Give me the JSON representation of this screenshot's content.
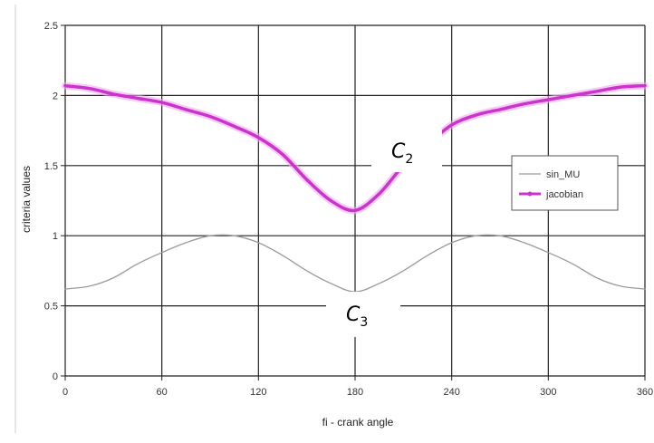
{
  "chart_data": {
    "type": "line",
    "title": "",
    "xlabel": "fi - crank angle",
    "ylabel": "criteria values",
    "xlim": [
      0,
      360
    ],
    "ylim": [
      0,
      2.5
    ],
    "x_ticks": [
      "0",
      "60",
      "120",
      "180",
      "240",
      "300",
      "360"
    ],
    "y_ticks": [
      "0",
      "0.5",
      "1",
      "1.5",
      "2",
      "2.5"
    ],
    "grid": true,
    "legend": "right",
    "x": [
      0,
      15,
      30,
      45,
      60,
      75,
      90,
      105,
      120,
      135,
      150,
      165,
      180,
      195,
      210,
      225,
      240,
      255,
      270,
      285,
      300,
      315,
      330,
      345,
      360
    ],
    "series": [
      {
        "name": "sin_MU",
        "color": "#9a9a9a",
        "values": [
          0.62,
          0.64,
          0.7,
          0.8,
          0.88,
          0.95,
          1.0,
          1.0,
          0.95,
          0.86,
          0.75,
          0.66,
          0.6,
          0.66,
          0.75,
          0.86,
          0.95,
          1.0,
          1.0,
          0.95,
          0.88,
          0.8,
          0.7,
          0.64,
          0.62
        ]
      },
      {
        "name": "jacobian",
        "color": "#cc33cc",
        "values": [
          2.07,
          2.05,
          2.01,
          1.98,
          1.95,
          1.9,
          1.85,
          1.78,
          1.7,
          1.58,
          1.4,
          1.25,
          1.18,
          1.3,
          1.5,
          1.65,
          1.79,
          1.86,
          1.9,
          1.94,
          1.97,
          2.0,
          2.03,
          2.06,
          2.07
        ]
      }
    ],
    "annotations": [
      {
        "main": "C",
        "sub": "2",
        "series": "jacobian"
      },
      {
        "main": "C",
        "sub": "3",
        "series": "sin_MU"
      }
    ]
  }
}
